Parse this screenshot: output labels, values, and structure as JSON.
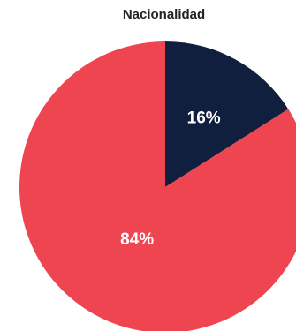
{
  "chart_data": {
    "type": "pie",
    "title": "Nacionalidad",
    "slices": [
      {
        "label": "16%",
        "value": 16,
        "color": "#0f1f3d"
      },
      {
        "label": "84%",
        "value": 84,
        "color": "#ef4550"
      }
    ],
    "start_angle_deg": 0,
    "direction": "clockwise"
  }
}
